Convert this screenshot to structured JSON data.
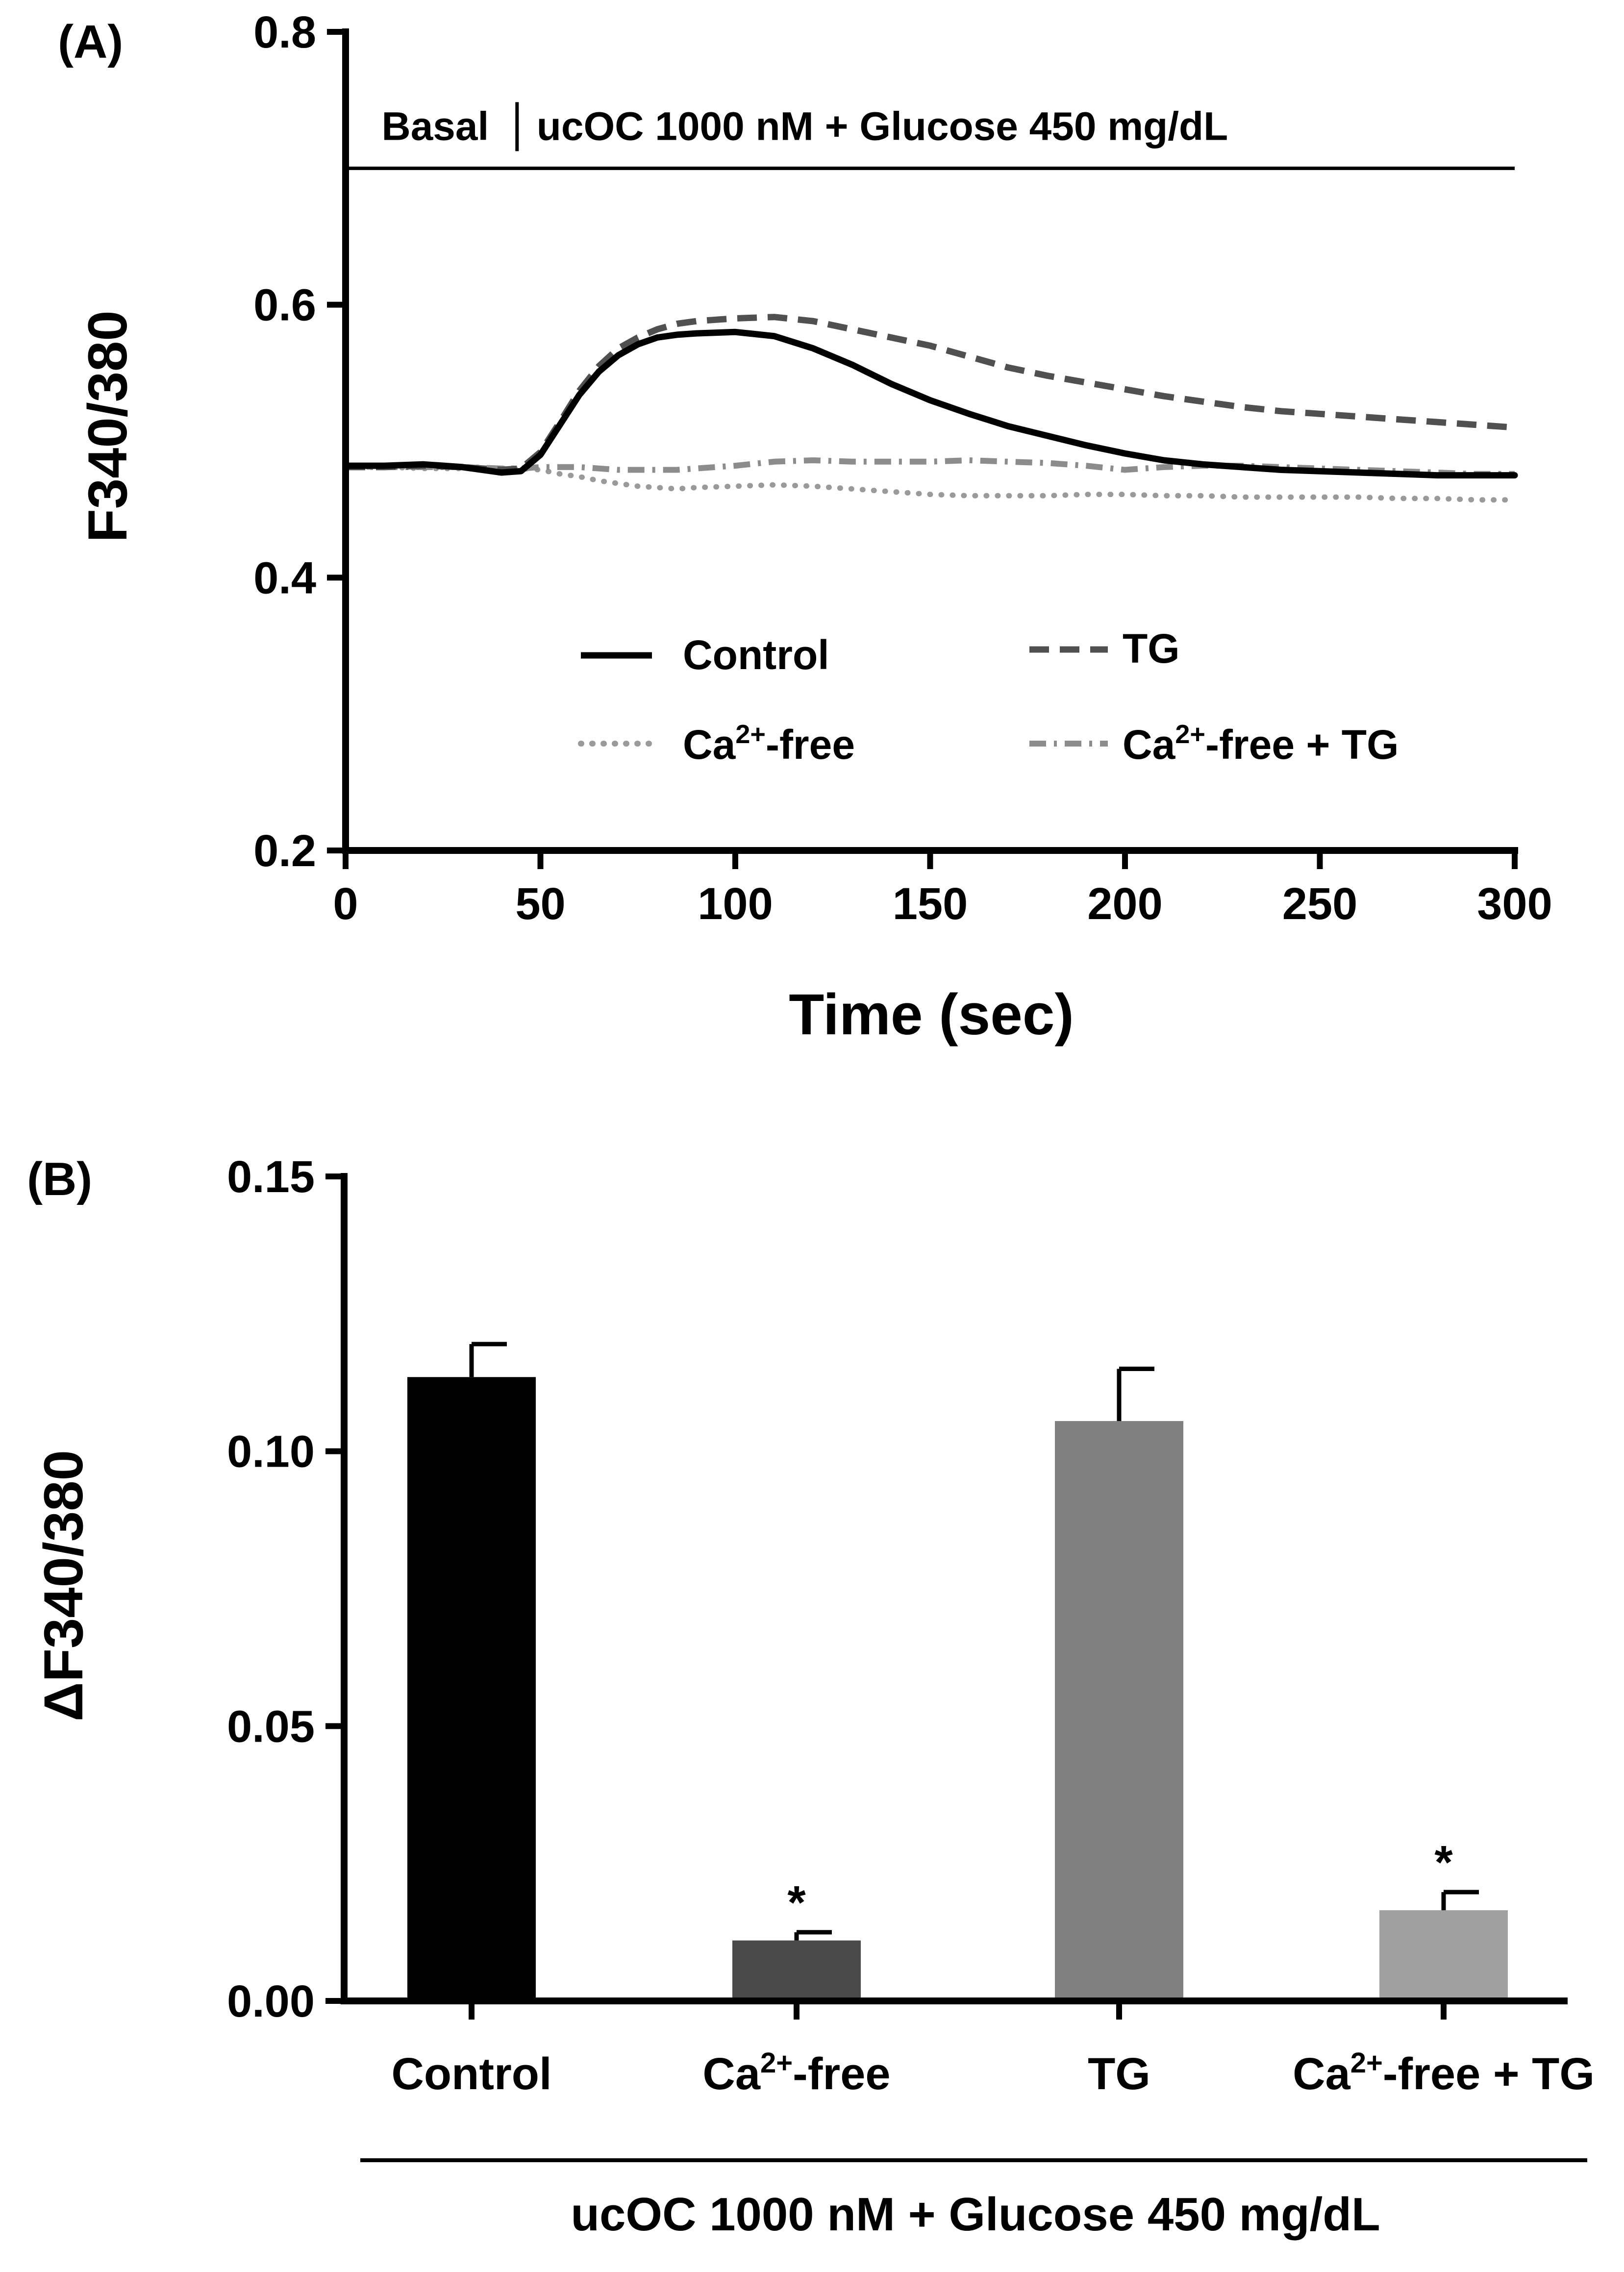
{
  "colors": {
    "axis": "#000000",
    "control": "#000000",
    "ca_free": "#9a9a9a",
    "tg": "#505050",
    "ca_free_tg": "#8c8c8c",
    "bar_control": "#000000",
    "bar_ca_free": "#4a4a4a",
    "bar_tg": "#808080",
    "bar_ca_free_tg": "#a0a0a0"
  },
  "chart_data": [
    {
      "panel_label": "(A)",
      "type": "line",
      "xlabel": "Time (sec)",
      "ylabel": "F340/380",
      "xlim": [
        0,
        300
      ],
      "ylim": [
        0.2,
        0.8
      ],
      "x_tick_labels": [
        "0",
        "50",
        "100",
        "150",
        "200",
        "250",
        "300"
      ],
      "y_tick_labels": [
        "0.2",
        "0.4",
        "0.6",
        "0.8"
      ],
      "treatment_bar": {
        "level": 0.7,
        "divider_x": 44,
        "basal_label": "Basal",
        "treatment_label": "ucOC 1000 nM + Glucose 450 mg/dL"
      },
      "x": [
        0,
        10,
        20,
        30,
        40,
        45,
        50,
        55,
        60,
        65,
        70,
        75,
        80,
        85,
        90,
        100,
        110,
        120,
        130,
        140,
        150,
        160,
        170,
        180,
        190,
        200,
        210,
        220,
        230,
        240,
        250,
        260,
        270,
        280,
        290,
        300
      ],
      "series": [
        {
          "key": "control",
          "name": "Control",
          "style": "solid",
          "values": [
            0.482,
            0.482,
            0.483,
            0.481,
            0.477,
            0.478,
            0.49,
            0.512,
            0.534,
            0.551,
            0.563,
            0.571,
            0.576,
            0.578,
            0.579,
            0.58,
            0.577,
            0.568,
            0.556,
            0.542,
            0.53,
            0.52,
            0.511,
            0.504,
            0.497,
            0.491,
            0.486,
            0.483,
            0.481,
            0.479,
            0.478,
            0.477,
            0.476,
            0.475,
            0.475,
            0.475
          ]
        },
        {
          "key": "tg",
          "name": "TG",
          "style": "dashed",
          "values": [
            0.481,
            0.481,
            0.482,
            0.481,
            0.479,
            0.48,
            0.492,
            0.514,
            0.537,
            0.555,
            0.568,
            0.576,
            0.582,
            0.586,
            0.588,
            0.59,
            0.591,
            0.588,
            0.582,
            0.576,
            0.57,
            0.562,
            0.554,
            0.548,
            0.543,
            0.538,
            0.533,
            0.529,
            0.525,
            0.522,
            0.52,
            0.518,
            0.516,
            0.514,
            0.512,
            0.51
          ]
        },
        {
          "key": "ca_free",
          "name": "Ca2+-free",
          "name_base": "Ca",
          "name_sup": "2+",
          "name_suffix": "-free",
          "style": "dotted",
          "values": [
            0.481,
            0.481,
            0.48,
            0.48,
            0.48,
            0.48,
            0.479,
            0.476,
            0.474,
            0.471,
            0.469,
            0.467,
            0.466,
            0.465,
            0.466,
            0.467,
            0.468,
            0.467,
            0.465,
            0.463,
            0.461,
            0.46,
            0.46,
            0.46,
            0.461,
            0.461,
            0.46,
            0.46,
            0.459,
            0.459,
            0.459,
            0.459,
            0.458,
            0.458,
            0.457,
            0.457
          ]
        },
        {
          "key": "ca_free_tg",
          "name": "Ca2+-free + TG",
          "name_base": "Ca",
          "name_sup": "2+",
          "name_suffix": "-free + TG",
          "style": "dashdot",
          "values": [
            0.481,
            0.481,
            0.481,
            0.481,
            0.48,
            0.48,
            0.481,
            0.481,
            0.481,
            0.48,
            0.479,
            0.479,
            0.479,
            0.479,
            0.48,
            0.482,
            0.485,
            0.486,
            0.485,
            0.485,
            0.485,
            0.486,
            0.485,
            0.484,
            0.482,
            0.479,
            0.481,
            0.482,
            0.482,
            0.481,
            0.48,
            0.479,
            0.478,
            0.477,
            0.476,
            0.476
          ]
        }
      ]
    },
    {
      "panel_label": "(B)",
      "type": "bar",
      "ylabel": "ΔF340/380",
      "ylim": [
        0,
        0.15
      ],
      "y_tick_labels": [
        "0.00",
        "0.05",
        "0.10",
        "0.15"
      ],
      "categories": [
        {
          "key": "bar_control",
          "base": "Control",
          "sup": "",
          "suffix": ""
        },
        {
          "key": "bar_ca_free",
          "base": "Ca",
          "sup": "2+",
          "suffix": "-free"
        },
        {
          "key": "bar_tg",
          "base": "TG",
          "sup": "",
          "suffix": ""
        },
        {
          "key": "bar_ca_free_tg",
          "base": "Ca",
          "sup": "2+",
          "suffix": "-free + TG"
        }
      ],
      "values": [
        0.1135,
        0.011,
        0.1055,
        0.0165
      ],
      "errors": [
        0.006,
        0.0015,
        0.0095,
        0.0033
      ],
      "significance": [
        "",
        "*",
        "",
        "*"
      ],
      "group_label": "ucOC 1000 nM + Glucose 450 mg/dL"
    }
  ]
}
